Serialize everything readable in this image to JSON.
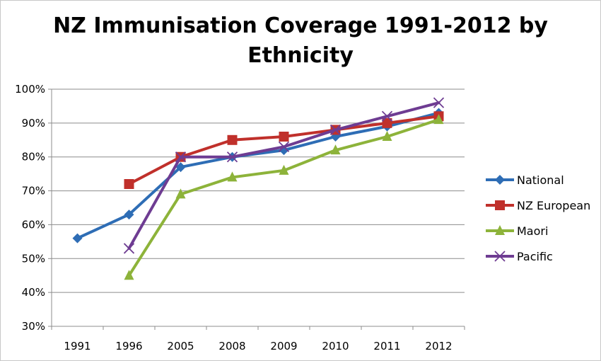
{
  "chart_data": {
    "type": "line",
    "title_line1": "NZ Immunisation Coverage 1991-2012 by",
    "title_line2": "Ethnicity",
    "title": "NZ Immunisation Coverage 1991-2012 by Ethnicity",
    "xlabel": "",
    "ylabel": "",
    "categories": [
      "1991",
      "1996",
      "2005",
      "2008",
      "2009",
      "2010",
      "2011",
      "2012"
    ],
    "y_ticks": [
      "30%",
      "40%",
      "50%",
      "60%",
      "70%",
      "80%",
      "90%",
      "100%"
    ],
    "ylim": [
      30,
      100
    ],
    "grid": true,
    "legend_position": "right",
    "series": [
      {
        "name": "National",
        "color": "#2e6db5",
        "marker": "diamond",
        "values": [
          56,
          63,
          77,
          80,
          82,
          86,
          89,
          93
        ]
      },
      {
        "name": "NZ European",
        "color": "#c0302b",
        "marker": "square",
        "values": [
          null,
          72,
          80,
          85,
          86,
          88,
          90,
          92
        ]
      },
      {
        "name": "Maori",
        "color": "#8db33a",
        "marker": "triangle",
        "values": [
          null,
          45,
          69,
          74,
          76,
          82,
          86,
          91
        ]
      },
      {
        "name": "Pacific",
        "color": "#6e3c92",
        "marker": "x",
        "values": [
          null,
          53,
          80,
          80,
          83,
          88,
          92,
          96
        ]
      }
    ]
  }
}
